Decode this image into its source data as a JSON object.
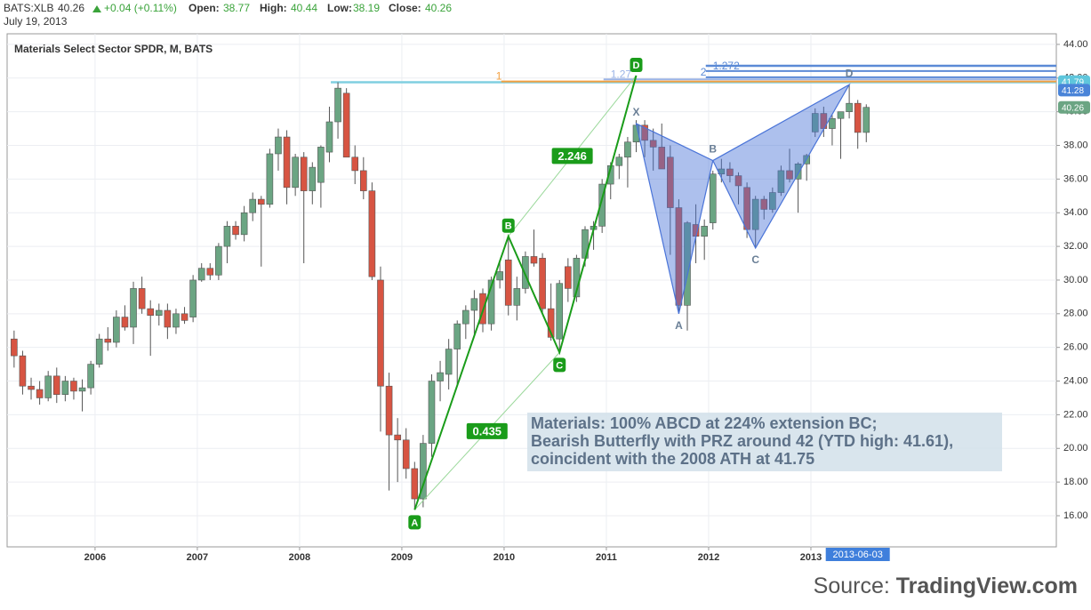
{
  "header": {
    "symbol": "BATS:XLB",
    "price": "40.26",
    "change": "+0.04 (+0.11%)",
    "open_label": "Open:",
    "open": "38.77",
    "high_label": "High:",
    "high": "40.44",
    "low_label": "Low:",
    "low": "38.19",
    "close_label": "Close:",
    "close": "40.26",
    "date": "July 19, 2013"
  },
  "chart_data": {
    "type": "candlestick",
    "title": "Materials Select Sector SPDR, M, BATS",
    "x": [
      "2005-03",
      "2005-04",
      "2005-05",
      "2005-06",
      "2005-07",
      "2005-08",
      "2005-09",
      "2005-10",
      "2005-11",
      "2005-12",
      "2006-01",
      "2006-02",
      "2006-03",
      "2006-04",
      "2006-05",
      "2006-06",
      "2006-07",
      "2006-08",
      "2006-09",
      "2006-10",
      "2006-11",
      "2006-12",
      "2007-01",
      "2007-02",
      "2007-03",
      "2007-04",
      "2007-05",
      "2007-06",
      "2007-07",
      "2007-08",
      "2007-09",
      "2007-10",
      "2007-11",
      "2007-12",
      "2008-01",
      "2008-02",
      "2008-03",
      "2008-04",
      "2008-05",
      "2008-06",
      "2008-07",
      "2008-08",
      "2008-09",
      "2008-10",
      "2008-11",
      "2008-12",
      "2009-01",
      "2009-02",
      "2009-03",
      "2009-04",
      "2009-05",
      "2009-06",
      "2009-07",
      "2009-08",
      "2009-09",
      "2009-10",
      "2009-11",
      "2009-12",
      "2010-01",
      "2010-02",
      "2010-03",
      "2010-04",
      "2010-05",
      "2010-06",
      "2010-07",
      "2010-08",
      "2010-09",
      "2010-10",
      "2010-11",
      "2010-12",
      "2011-01",
      "2011-02",
      "2011-03",
      "2011-04",
      "2011-05",
      "2011-06",
      "2011-07",
      "2011-08",
      "2011-09",
      "2011-10",
      "2011-11",
      "2011-12",
      "2012-01",
      "2012-02",
      "2012-03",
      "2012-04",
      "2012-05",
      "2012-06",
      "2012-07",
      "2012-08",
      "2012-09",
      "2012-10",
      "2012-11",
      "2012-12",
      "2013-01",
      "2013-02",
      "2013-03",
      "2013-04",
      "2013-05",
      "2013-06",
      "2013-07"
    ],
    "open": [
      26.5,
      25.5,
      23.7,
      23.5,
      23.0,
      24.3,
      23.2,
      24.0,
      23.4,
      23.6,
      25.0,
      26.5,
      26.3,
      27.8,
      27.2,
      29.5,
      28.3,
      27.9,
      28.2,
      27.2,
      28.0,
      27.8,
      30.0,
      30.7,
      30.3,
      32.0,
      33.2,
      32.7,
      34.0,
      34.8,
      34.5,
      37.5,
      38.5,
      35.5,
      37.3,
      35.3,
      35.8,
      37.6,
      39.4,
      41.1,
      37.3,
      36.5,
      35.3,
      30.0,
      23.7,
      20.8,
      20.5,
      18.8,
      17.0,
      20.3,
      24.0,
      24.4,
      25.9,
      27.4,
      28.2,
      29.2,
      27.4,
      30.0,
      31.2,
      28.5,
      29.5,
      31.4,
      31.3,
      28.3,
      26.5,
      30.8,
      29.0,
      31.3,
      33.0,
      33.2,
      35.7,
      36.8,
      37.3,
      38.2,
      39.2,
      38.3,
      37.9,
      37.3,
      34.3,
      28.5,
      33.3,
      32.6,
      33.4,
      36.3,
      36.6,
      36.2,
      35.5,
      33.0,
      34.8,
      34.2,
      35.2,
      36.5,
      36.0,
      36.9,
      38.8,
      39.9,
      39.0,
      39.6,
      40.0,
      40.5,
      38.77
    ],
    "high": [
      27.0,
      25.8,
      24.2,
      24.0,
      24.6,
      24.8,
      24.3,
      24.2,
      24.1,
      25.2,
      26.8,
      27.2,
      28.2,
      28.5,
      29.9,
      30.2,
      28.8,
      28.6,
      28.6,
      28.3,
      28.4,
      30.3,
      31.0,
      31.0,
      32.2,
      33.5,
      33.5,
      34.4,
      35.2,
      35.0,
      37.8,
      39.0,
      38.9,
      37.5,
      37.6,
      37.0,
      38.0,
      40.3,
      41.75,
      41.4,
      38.0,
      37.3,
      35.8,
      30.8,
      24.5,
      21.8,
      21.2,
      19.2,
      20.8,
      24.4,
      25.2,
      26.5,
      27.6,
      28.5,
      29.4,
      29.5,
      30.2,
      31.2,
      32.6,
      30.2,
      31.7,
      33.0,
      31.6,
      29.8,
      30.0,
      31.3,
      31.5,
      33.2,
      33.5,
      36.0,
      37.0,
      37.5,
      38.5,
      39.5,
      39.5,
      39.0,
      39.3,
      38.0,
      34.8,
      33.5,
      34.5,
      33.6,
      36.5,
      37.2,
      37.0,
      36.4,
      35.8,
      35.0,
      35.0,
      35.5,
      36.8,
      37.8,
      37.0,
      37.5,
      40.2,
      40.3,
      39.8,
      40.0,
      41.61,
      40.7,
      40.44
    ],
    "low": [
      24.8,
      23.2,
      22.9,
      22.6,
      22.8,
      22.7,
      22.8,
      22.9,
      22.2,
      23.2,
      24.8,
      25.8,
      26.0,
      27.0,
      26.2,
      28.0,
      25.5,
      27.3,
      26.5,
      26.8,
      27.4,
      27.5,
      29.9,
      30.0,
      30.0,
      31.0,
      32.4,
      32.3,
      33.5,
      30.8,
      34.3,
      36.5,
      34.5,
      35.0,
      31.0,
      34.5,
      34.3,
      37.0,
      38.4,
      37.5,
      35.7,
      34.8,
      30.0,
      21.0,
      17.5,
      18.0,
      18.2,
      16.35,
      16.5,
      19.5,
      22.8,
      23.5,
      23.8,
      26.5,
      26.8,
      26.9,
      27.0,
      29.5,
      27.9,
      27.6,
      29.2,
      30.8,
      28.0,
      26.4,
      25.7,
      28.7,
      28.7,
      30.8,
      31.8,
      32.8,
      34.8,
      36.0,
      35.5,
      37.6,
      37.3,
      36.5,
      36.8,
      31.5,
      28.0,
      27.0,
      31.0,
      31.2,
      33.0,
      35.8,
      35.8,
      34.5,
      32.5,
      31.9,
      33.6,
      34.0,
      35.0,
      35.8,
      34.0,
      35.9,
      38.5,
      38.5,
      38.0,
      37.2,
      39.6,
      37.8,
      38.19
    ],
    "close": [
      25.5,
      23.7,
      23.5,
      23.0,
      24.3,
      23.2,
      24.0,
      23.4,
      23.6,
      25.0,
      26.5,
      26.3,
      27.8,
      27.2,
      29.5,
      28.3,
      27.9,
      28.2,
      27.2,
      28.0,
      27.6,
      30.0,
      30.7,
      30.3,
      32.0,
      33.2,
      32.7,
      34.0,
      34.8,
      34.5,
      37.5,
      38.5,
      35.5,
      37.3,
      35.3,
      36.7,
      37.9,
      39.4,
      41.4,
      37.3,
      36.5,
      35.3,
      30.2,
      23.7,
      20.8,
      20.5,
      18.8,
      17.0,
      20.3,
      24.0,
      24.5,
      25.9,
      27.4,
      28.2,
      28.9,
      27.4,
      30.0,
      30.5,
      28.5,
      29.5,
      31.4,
      31.0,
      28.3,
      26.6,
      29.8,
      29.5,
      31.3,
      33.0,
      33.2,
      35.7,
      36.8,
      37.3,
      38.2,
      39.2,
      38.3,
      37.9,
      36.6,
      34.3,
      28.5,
      33.4,
      32.6,
      33.2,
      36.3,
      36.6,
      36.2,
      35.6,
      33.0,
      34.8,
      34.2,
      35.2,
      36.5,
      36.0,
      36.9,
      37.4,
      39.9,
      39.0,
      39.6,
      40.0,
      40.5,
      38.77,
      40.26
    ],
    "up_color": "#6ba583",
    "down_color": "#d75442",
    "xlim": [
      2005.14,
      2015.4
    ],
    "xticks": [
      2006,
      2007,
      2008,
      2009,
      2010,
      2011,
      2012,
      2013
    ],
    "ylim": [
      14.15,
      44.63
    ],
    "yticks": [
      {
        "value": 16,
        "label": "16.00"
      },
      {
        "value": 18,
        "label": "18.00"
      },
      {
        "value": 20,
        "label": "20.00"
      },
      {
        "value": 22,
        "label": "22.00"
      },
      {
        "value": 24,
        "label": "24.00"
      },
      {
        "value": 26,
        "label": "26.00"
      },
      {
        "value": 28,
        "label": "28.00"
      },
      {
        "value": 30,
        "label": "30.00"
      },
      {
        "value": 32,
        "label": "32.00"
      },
      {
        "value": 34,
        "label": "34.00"
      },
      {
        "value": 36,
        "label": "36.00"
      },
      {
        "value": 38,
        "label": "38.00"
      },
      {
        "value": 40,
        "label": "40.00"
      },
      {
        "value": 42,
        "label": "42.00"
      },
      {
        "value": 44,
        "label": "44.00"
      }
    ],
    "grid": true,
    "levels": [
      {
        "value": 41.75,
        "color": "#80cfe0",
        "start": "2008-05"
      },
      {
        "value": 41.8,
        "label": "1",
        "color": "#f4a040",
        "start": "2010-01"
      },
      {
        "value": 41.92,
        "label": "1.27",
        "color": "#9bb4e6",
        "start": "2011-01"
      },
      {
        "value": 42.05,
        "label": "2",
        "color": "#5b8ad6",
        "start": "2012-01"
      },
      {
        "value": 42.42,
        "label": "1.272",
        "color": "#5b8ad6",
        "start": "2012-01"
      },
      {
        "value": 42.73,
        "color": "#5b8ad6",
        "start": "2012-01"
      }
    ],
    "abcd": {
      "color": "#1a9c1a",
      "points": [
        {
          "label": "A",
          "x": "2009-02",
          "y": 16.35
        },
        {
          "label": "B",
          "x": "2010-01",
          "y": 32.6
        },
        {
          "label": "C",
          "x": "2010-07",
          "y": 25.7
        },
        {
          "label": "D",
          "x": "2011-04",
          "y": 42.15
        }
      ],
      "ratios": [
        "0.435",
        "2.246"
      ]
    },
    "butterfly": {
      "color": "#4a74d8",
      "points": [
        {
          "label": "X",
          "x": "2011-04",
          "y": 39.3
        },
        {
          "label": "A",
          "x": "2011-09",
          "y": 28.0
        },
        {
          "label": "B",
          "x": "2012-01",
          "y": 37.1
        },
        {
          "label": "C",
          "x": "2012-06",
          "y": 31.9
        },
        {
          "label": "D",
          "x": "2013-05",
          "y": 41.61
        }
      ]
    },
    "price_badges": [
      {
        "value": 41.79,
        "label": "41.79",
        "color": "#5fc6dc"
      },
      {
        "value": 41.28,
        "label": "41.28",
        "color": "#4a84d8"
      },
      {
        "value": 40.26,
        "label": "40.26",
        "color": "#6ba583"
      }
    ],
    "date_badge": {
      "x": "2013-06",
      "label": "2013-06-03"
    },
    "note": [
      "Materials: 100% ABCD at 224% extension BC;",
      "Bearish Butterfly with PRZ around 42 (YTD high: 41.61),",
      "coincident with the 2008 ATH at 41.75"
    ]
  },
  "footer": {
    "source": "Source:",
    "site": "TradingView.com"
  }
}
